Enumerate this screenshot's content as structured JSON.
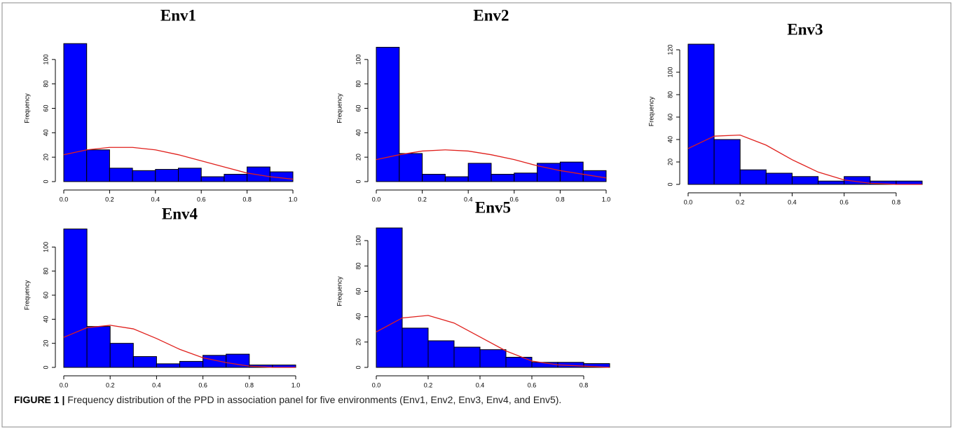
{
  "chart_data": [
    {
      "type": "histogram",
      "title": "Env1",
      "y_label": "Frequency",
      "color": "#0000ff",
      "bins": [
        0,
        0.1,
        0.2,
        0.3,
        0.4,
        0.5,
        0.6,
        0.7,
        0.8,
        0.9,
        1.0
      ],
      "values": [
        113,
        26,
        11,
        9,
        10,
        11,
        4,
        6,
        12,
        8
      ],
      "xlim": [
        0,
        1
      ],
      "ylim": [
        0,
        120
      ],
      "xticks": [
        {
          "value": 0,
          "label": "0.0"
        },
        {
          "value": 0.2,
          "label": "0.2"
        },
        {
          "value": 0.4,
          "label": "0.4"
        },
        {
          "value": 0.6,
          "label": "0.6"
        },
        {
          "value": 0.8,
          "label": "0.8"
        },
        {
          "value": 1,
          "label": "1.0"
        }
      ],
      "yticks": [
        0,
        20,
        40,
        60,
        80,
        100
      ],
      "curve": {
        "color": "#e0201c",
        "x": [
          0,
          0.1,
          0.2,
          0.3,
          0.4,
          0.5,
          0.6,
          0.7,
          0.8,
          0.9,
          1.0
        ],
        "values": [
          22,
          26,
          28,
          28,
          26,
          22,
          17,
          12,
          7,
          4,
          2
        ]
      }
    },
    {
      "type": "histogram",
      "title": "Env2",
      "y_label": "Frequency",
      "color": "#0000ff",
      "bins": [
        0,
        0.1,
        0.2,
        0.3,
        0.4,
        0.5,
        0.6,
        0.7,
        0.8,
        0.9,
        1.0
      ],
      "values": [
        110,
        23,
        6,
        4,
        15,
        6,
        7,
        15,
        16,
        9
      ],
      "xlim": [
        0,
        1
      ],
      "ylim": [
        0,
        120
      ],
      "xticks": [
        {
          "value": 0,
          "label": "0.0"
        },
        {
          "value": 0.2,
          "label": "0.2"
        },
        {
          "value": 0.4,
          "label": "0.4"
        },
        {
          "value": 0.6,
          "label": "0.6"
        },
        {
          "value": 0.8,
          "label": "0.8"
        },
        {
          "value": 1,
          "label": "1.0"
        }
      ],
      "yticks": [
        0,
        20,
        40,
        60,
        80,
        100
      ],
      "curve": {
        "color": "#e0201c",
        "x": [
          0,
          0.1,
          0.2,
          0.3,
          0.4,
          0.5,
          0.6,
          0.7,
          0.8,
          0.9,
          1.0
        ],
        "values": [
          18,
          22,
          25,
          26,
          25,
          22,
          18,
          13,
          9,
          6,
          3
        ]
      }
    },
    {
      "type": "histogram",
      "title": "Env3",
      "y_label": "Frequency",
      "color": "#0000ff",
      "bins": [
        0,
        0.1,
        0.2,
        0.3,
        0.4,
        0.5,
        0.6,
        0.7,
        0.8,
        0.9
      ],
      "values": [
        125,
        40,
        13,
        10,
        7,
        3,
        7,
        3,
        3
      ],
      "xlim": [
        0,
        0.9
      ],
      "ylim": [
        0,
        130
      ],
      "xticks": [
        {
          "value": 0,
          "label": "0.0"
        },
        {
          "value": 0.2,
          "label": "0.2"
        },
        {
          "value": 0.4,
          "label": "0.4"
        },
        {
          "value": 0.6,
          "label": "0.6"
        },
        {
          "value": 0.8,
          "label": "0.8"
        }
      ],
      "yticks": [
        0,
        20,
        40,
        60,
        80,
        100,
        120
      ],
      "curve": {
        "color": "#e0201c",
        "x": [
          0,
          0.1,
          0.2,
          0.3,
          0.4,
          0.5,
          0.6,
          0.7,
          0.8,
          0.9
        ],
        "values": [
          32,
          43,
          44,
          35,
          22,
          11,
          4,
          1,
          0,
          0
        ]
      }
    },
    {
      "type": "histogram",
      "title": "Env4",
      "y_label": "Frequency",
      "color": "#0000ff",
      "bins": [
        0,
        0.1,
        0.2,
        0.3,
        0.4,
        0.5,
        0.6,
        0.7,
        0.8,
        0.9,
        1.0
      ],
      "values": [
        115,
        34,
        20,
        9,
        3,
        5,
        10,
        11,
        2,
        2
      ],
      "xlim": [
        0,
        1
      ],
      "ylim": [
        0,
        120
      ],
      "xticks": [
        {
          "value": 0,
          "label": "0.0"
        },
        {
          "value": 0.2,
          "label": "0.2"
        },
        {
          "value": 0.4,
          "label": "0.4"
        },
        {
          "value": 0.6,
          "label": "0.6"
        },
        {
          "value": 0.8,
          "label": "0.8"
        },
        {
          "value": 1,
          "label": "1.0"
        }
      ],
      "yticks": [
        0,
        20,
        40,
        60,
        80,
        100
      ],
      "curve": {
        "color": "#e0201c",
        "x": [
          0,
          0.1,
          0.2,
          0.3,
          0.4,
          0.5,
          0.6,
          0.7,
          0.8,
          0.9,
          1.0
        ],
        "values": [
          25,
          33,
          35,
          32,
          24,
          15,
          8,
          4,
          1,
          0,
          0
        ]
      }
    },
    {
      "type": "histogram",
      "title": "Env5",
      "y_label": "Frequency",
      "color": "#0000ff",
      "bins": [
        0,
        0.1,
        0.2,
        0.3,
        0.4,
        0.5,
        0.6,
        0.7,
        0.8,
        0.9
      ],
      "values": [
        110,
        31,
        21,
        16,
        14,
        8,
        4,
        4,
        3
      ],
      "xlim": [
        0,
        0.9
      ],
      "ylim": [
        0,
        120
      ],
      "xticks": [
        {
          "value": 0,
          "label": "0.0"
        },
        {
          "value": 0.2,
          "label": "0.2"
        },
        {
          "value": 0.4,
          "label": "0.4"
        },
        {
          "value": 0.6,
          "label": "0.6"
        },
        {
          "value": 0.8,
          "label": "0.8"
        }
      ],
      "yticks": [
        0,
        20,
        40,
        60,
        80,
        100
      ],
      "curve": {
        "color": "#e0201c",
        "x": [
          0,
          0.1,
          0.2,
          0.3,
          0.4,
          0.5,
          0.6,
          0.7,
          0.8,
          0.9
        ],
        "values": [
          28,
          39,
          41,
          35,
          24,
          13,
          5,
          2,
          1,
          0
        ]
      }
    }
  ],
  "caption": {
    "label": "FIGURE 1 |",
    "text": " Frequency distribution of the PPD in association panel for five environments (Env1, Env2, Env3, Env4, and Env5)."
  }
}
